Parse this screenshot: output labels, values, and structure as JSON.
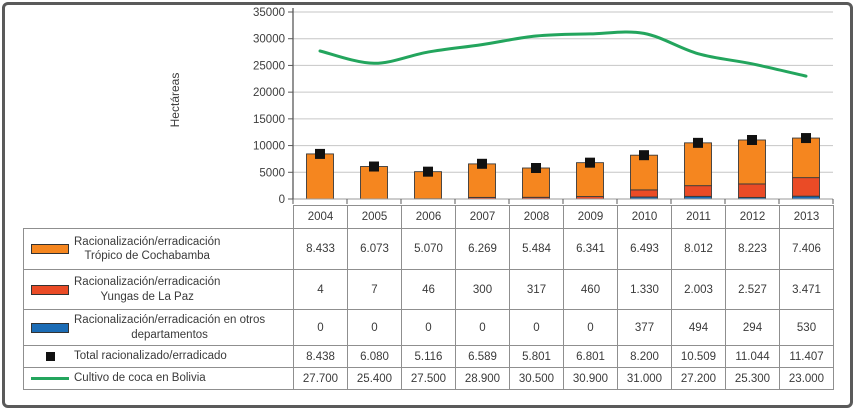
{
  "frame": {
    "background": "#ffffff",
    "border_color": "#5a5a5a"
  },
  "chart_data": {
    "type": "combo-stacked-bar-line",
    "ylabel": "Hectáreas",
    "ylim": [
      0,
      35000
    ],
    "ytick_step": 5000,
    "grid": true,
    "legend_position": "table-left",
    "categories": [
      "2004",
      "2005",
      "2006",
      "2007",
      "2008",
      "2009",
      "2010",
      "2011",
      "2012",
      "2013"
    ],
    "bar_series": [
      {
        "name": "Racionalización/erradicación en otros departamentos",
        "color": "#1b6cb5",
        "values": [
          0,
          0,
          0,
          0,
          0,
          0,
          377,
          494,
          294,
          530
        ]
      },
      {
        "name": "Racionalización/erradicación Yungas de La Paz",
        "color": "#ea4b26",
        "values": [
          4,
          7,
          46,
          300,
          317,
          460,
          1330,
          2003,
          2527,
          3471
        ]
      },
      {
        "name": "Racionalización/erradicación Trópico de Cochabamba",
        "color": "#f5861f",
        "values": [
          8433,
          6073,
          5070,
          6269,
          5484,
          6341,
          6493,
          8012,
          8223,
          7406
        ]
      }
    ],
    "marker_series": {
      "name": "Total racionalizado/erradicado",
      "color": "#111111",
      "values": [
        8438,
        6080,
        5116,
        6589,
        5801,
        6801,
        8200,
        10509,
        11044,
        11407
      ]
    },
    "line_series": {
      "name": "Cultivo de coca en Bolivia",
      "color": "#23a55d",
      "values": [
        27700,
        25400,
        27500,
        28900,
        30500,
        30900,
        31000,
        27200,
        25300,
        23000
      ]
    },
    "colors": {
      "gridline": "#c6c6c6",
      "axis": "#595959",
      "bar_outline": "#3a3a3a"
    }
  },
  "table": {
    "years": [
      "2004",
      "2005",
      "2006",
      "2007",
      "2008",
      "2009",
      "2010",
      "2011",
      "2012",
      "2013"
    ],
    "rows": [
      {
        "key": "tropico-cochabamba",
        "swatch": "bar",
        "color": "#f5861f",
        "label_lines": [
          "Racionalización/erradicación",
          "Trópico de Cochabamba"
        ],
        "values": [
          "8.433",
          "6.073",
          "5.070",
          "6.269",
          "5.484",
          "6.341",
          "6.493",
          "8.012",
          "8.223",
          "7.406"
        ]
      },
      {
        "key": "yungas-la-paz",
        "swatch": "bar",
        "color": "#ea4b26",
        "label_lines": [
          "Racionalización/erradicación",
          "Yungas de La Paz"
        ],
        "values": [
          "4",
          "7",
          "46",
          "300",
          "317",
          "460",
          "1.330",
          "2.003",
          "2.527",
          "3.471"
        ]
      },
      {
        "key": "otros-departamentos",
        "swatch": "bar",
        "color": "#1b6cb5",
        "label_lines": [
          "Racionalización/erradicación en otros",
          "departamentos"
        ],
        "values": [
          "0",
          "0",
          "0",
          "0",
          "0",
          "0",
          "377",
          "494",
          "294",
          "530"
        ]
      },
      {
        "key": "total-erradicado",
        "swatch": "marker",
        "color": "#111111",
        "label_lines": [
          "Total racionalizado/erradicado"
        ],
        "values": [
          "8.438",
          "6.080",
          "5.116",
          "6.589",
          "5.801",
          "6.801",
          "8.200",
          "10.509",
          "11.044",
          "11.407"
        ]
      },
      {
        "key": "cultivo-coca-bolivia",
        "swatch": "line",
        "color": "#23a55d",
        "label_lines": [
          "Cultivo de coca en Bolivia"
        ],
        "values": [
          "27.700",
          "25.400",
          "27.500",
          "28.900",
          "30.500",
          "30.900",
          "31.000",
          "27.200",
          "25.300",
          "23.000"
        ]
      }
    ]
  }
}
